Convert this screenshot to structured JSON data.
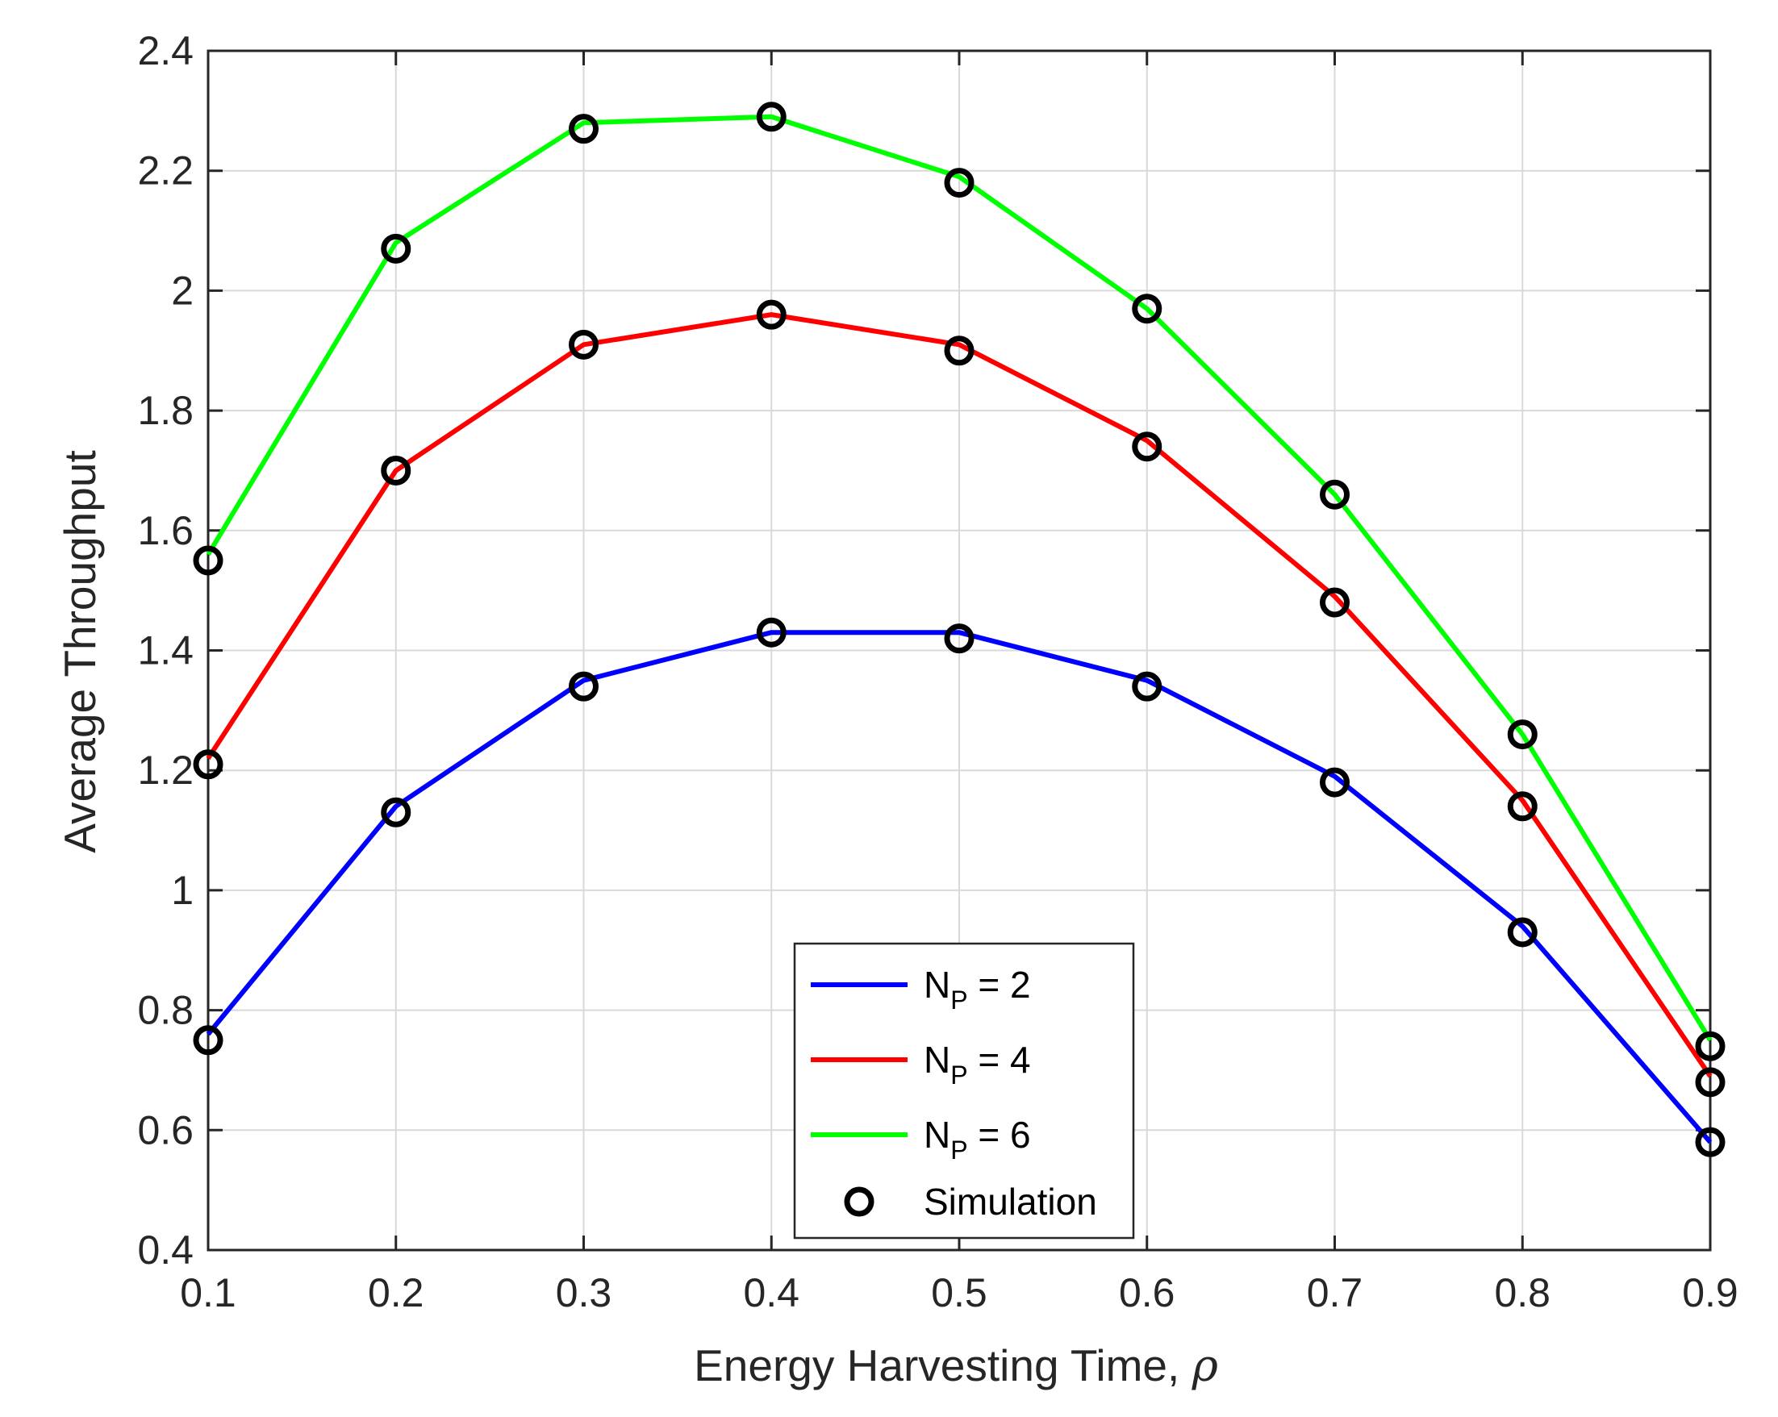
{
  "chart_data": {
    "type": "line",
    "title": "",
    "xlabel": "Energy Harvesting Time, ",
    "xlabel_symbol": "ρ",
    "ylabel": "Average Throughput",
    "x": [
      0.1,
      0.2,
      0.3,
      0.4,
      0.5,
      0.6,
      0.7,
      0.8,
      0.9
    ],
    "xlim": [
      0.1,
      0.9
    ],
    "ylim": [
      0.4,
      2.4
    ],
    "xticks": [
      "0.1",
      "0.2",
      "0.3",
      "0.4",
      "0.5",
      "0.6",
      "0.7",
      "0.8",
      "0.9"
    ],
    "yticks": [
      "0.4",
      "0.6",
      "0.8",
      "1",
      "1.2",
      "1.4",
      "1.6",
      "1.8",
      "2",
      "2.2",
      "2.4"
    ],
    "grid": true,
    "legend_position": "bottom-center",
    "series": [
      {
        "name": "N",
        "name_sub": "P",
        "name_suffix": " = 2",
        "color": "#0000ff",
        "values": [
          0.76,
          1.14,
          1.35,
          1.43,
          1.43,
          1.35,
          1.19,
          0.94,
          0.58
        ]
      },
      {
        "name": "N",
        "name_sub": "P",
        "name_suffix": " = 4",
        "color": "#ff0000",
        "values": [
          1.22,
          1.7,
          1.91,
          1.96,
          1.91,
          1.75,
          1.49,
          1.15,
          0.69
        ]
      },
      {
        "name": "N",
        "name_sub": "P",
        "name_suffix": " = 6",
        "color": "#00ff00",
        "values": [
          1.56,
          2.08,
          2.28,
          2.29,
          2.19,
          1.97,
          1.66,
          1.26,
          0.75
        ]
      }
    ],
    "simulation": {
      "name": "Simulation",
      "color": "#000000",
      "points": [
        [
          0.75,
          1.13,
          1.34,
          1.43,
          1.42,
          1.34,
          1.18,
          0.93,
          0.58
        ],
        [
          1.21,
          1.7,
          1.91,
          1.96,
          1.9,
          1.74,
          1.48,
          1.14,
          0.68
        ],
        [
          1.55,
          2.07,
          2.27,
          2.29,
          2.18,
          1.97,
          1.66,
          1.26,
          0.74
        ]
      ]
    }
  }
}
